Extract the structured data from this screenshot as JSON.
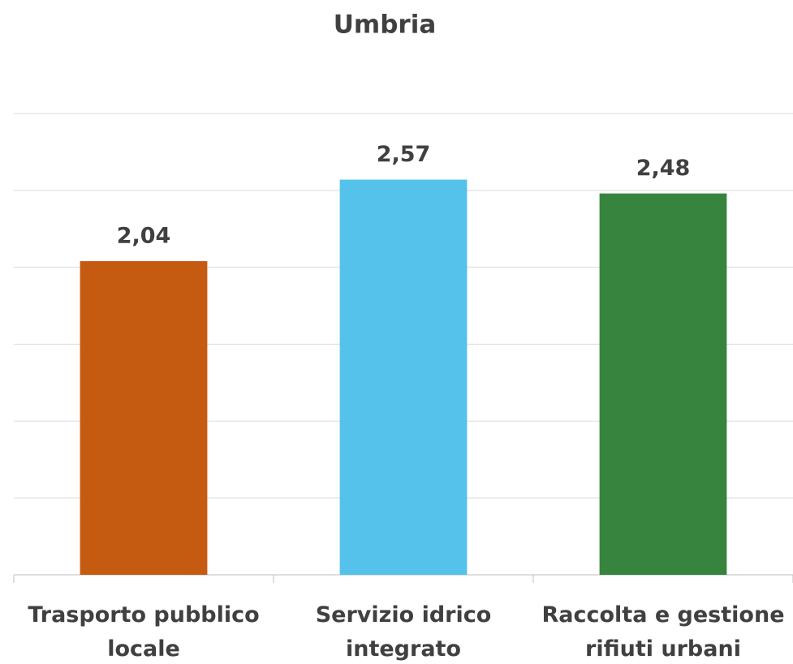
{
  "chart_data": {
    "type": "bar",
    "title": "Umbria",
    "categories": [
      "Trasporto pubblico locale",
      "Servizio idrico integrato",
      "Raccolta e gestione rifiuti urbani"
    ],
    "values": [
      2.04,
      2.57,
      2.48
    ],
    "value_labels": [
      "2,04",
      "2,57",
      "2,48"
    ],
    "colors": [
      "#c55a11",
      "#54c2ea",
      "#37843f"
    ],
    "ylim": [
      0,
      3
    ],
    "yticks": [
      0,
      0.5,
      1,
      1.5,
      2,
      2.5,
      3
    ],
    "grid": true
  }
}
